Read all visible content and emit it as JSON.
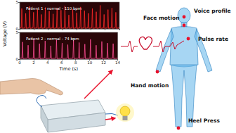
{
  "chart_data": [
    {
      "type": "line",
      "title": "Patient 1 - normal - 110 bpm",
      "ylabel": "Voltage (V)",
      "series": [
        {
          "name": "Patient 1 - normal - 110 bpm",
          "color": "#ff2a2a",
          "x": [
            0,
            0.22,
            0.3,
            0.38,
            0.77,
            0.85,
            0.93,
            1.32,
            1.4,
            1.48,
            1.87,
            1.95,
            2.03,
            2.42,
            2.5,
            2.58,
            2.97,
            3.05,
            3.13,
            3.52,
            3.6,
            3.68,
            4.07,
            4.15,
            4.23,
            4.62,
            4.7,
            4.78,
            5.17,
            5.25,
            5.33,
            5.72,
            5.8,
            5.88,
            6.27,
            6.35,
            6.43,
            6.82,
            6.9,
            6.98,
            7.37,
            7.45,
            7.53,
            7.92,
            8.0,
            8.08,
            8.47,
            8.55,
            8.63,
            9.02,
            9.1,
            9.18,
            9.57,
            9.65,
            9.73,
            10.12,
            10.2,
            10.28,
            10.67,
            10.75,
            10.83,
            11.22,
            11.3,
            11.38,
            11.77,
            11.85,
            11.93,
            12.32,
            12.4,
            12.48,
            12.87,
            12.95,
            13.03,
            13.42,
            13.5,
            13.58,
            14
          ],
          "values": [
            0.2,
            0.2,
            3.8,
            0.1,
            0.2,
            2.9,
            0.1,
            0.2,
            4.2,
            0.1,
            0.2,
            3.1,
            0.1,
            0.2,
            3.6,
            0.1,
            0.2,
            2.7,
            0.1,
            0.2,
            4.0,
            0.1,
            0.2,
            3.3,
            0.1,
            0.2,
            2.8,
            0.1,
            0.2,
            3.9,
            0.1,
            0.2,
            3.5,
            0.1,
            0.2,
            4.3,
            0.1,
            0.2,
            2.6,
            0.1,
            0.2,
            3.7,
            0.1,
            0.2,
            3.0,
            0.1,
            0.2,
            4.1,
            0.1,
            0.2,
            3.4,
            0.1,
            0.2,
            2.9,
            0.1,
            0.2,
            3.8,
            0.1,
            0.2,
            3.2,
            0.1,
            0.2,
            4.4,
            0.1,
            0.2,
            2.7,
            0.1,
            0.2,
            3.6,
            0.1,
            0.2,
            3.9,
            0.1,
            0.2,
            3.1,
            0.1,
            0.2
          ]
        }
      ],
      "xlim": [
        0,
        14
      ],
      "xticks": [
        0,
        2,
        4,
        6,
        8,
        10,
        12,
        14
      ],
      "ylim": [
        0,
        5
      ],
      "yticks": [
        0,
        5
      ],
      "tick_labels": "y",
      "grid": false
    },
    {
      "type": "line",
      "title": "Patient 2 - normal - 74 bpm",
      "xlabel": "Time (s)",
      "series": [
        {
          "name": "Patient 2 - normal - 74 bpm",
          "color": "#ff4d94",
          "x": [
            0,
            0.32,
            0.4,
            0.48,
            1.13,
            1.21,
            1.29,
            1.94,
            2.02,
            2.1,
            2.75,
            2.83,
            2.91,
            3.56,
            3.64,
            3.72,
            4.37,
            4.45,
            4.53,
            5.18,
            5.26,
            5.34,
            5.99,
            6.07,
            6.15,
            6.8,
            6.88,
            6.96,
            7.61,
            7.69,
            7.77,
            8.42,
            8.5,
            8.58,
            9.23,
            9.31,
            9.39,
            10.04,
            10.12,
            10.2,
            10.85,
            10.93,
            11.01,
            11.66,
            11.74,
            11.82,
            12.47,
            12.55,
            12.63,
            13.28,
            13.36,
            13.44,
            14
          ],
          "values": [
            0.2,
            0.2,
            3.2,
            0.1,
            0.2,
            2.6,
            0.1,
            0.2,
            3.8,
            0.1,
            0.2,
            2.9,
            0.1,
            0.2,
            3.4,
            0.1,
            0.2,
            2.5,
            0.1,
            0.2,
            3.6,
            0.1,
            0.2,
            3.0,
            0.1,
            0.2,
            2.7,
            0.1,
            0.2,
            3.5,
            0.1,
            0.2,
            3.1,
            0.1,
            0.2,
            2.8,
            0.1,
            0.2,
            3.7,
            0.1,
            0.2,
            2.6,
            0.1,
            0.2,
            3.3,
            0.1,
            0.2,
            3.0,
            0.1,
            0.2,
            2.9,
            0.1,
            0.2
          ]
        }
      ],
      "xlim": [
        0,
        14
      ],
      "xticks": [
        0,
        2,
        4,
        6,
        8,
        10,
        12,
        14
      ],
      "ylim": [
        0,
        5
      ],
      "yticks": [
        0,
        5
      ],
      "grid": false
    }
  ],
  "diagram": {
    "labels": [
      "Face motion",
      "Voice profile",
      "Pulse rate",
      "Hand motion",
      "Heel Press"
    ]
  }
}
